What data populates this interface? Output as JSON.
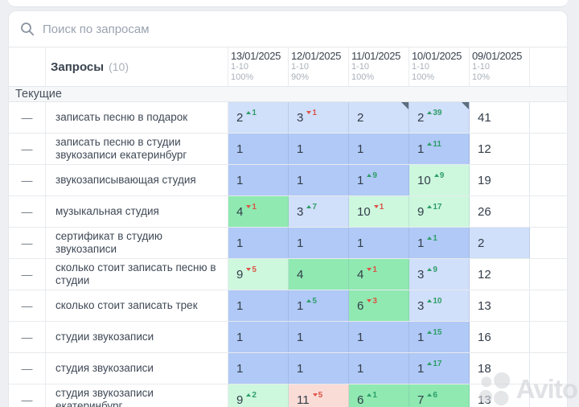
{
  "search": {
    "placeholder": "Поиск по запросам"
  },
  "table": {
    "queries_label": "Запросы",
    "queries_count": "(10)",
    "section_label": "Текущие",
    "columns": [
      {
        "date": "13/01/2025",
        "range": "1-10",
        "percent": "100%"
      },
      {
        "date": "12/01/2025",
        "range": "1-10",
        "percent": "90%"
      },
      {
        "date": "11/01/2025",
        "range": "1-10",
        "percent": "100%"
      },
      {
        "date": "10/01/2025",
        "range": "1-10",
        "percent": "100%"
      },
      {
        "date": "09/01/2025",
        "range": "1-10",
        "percent": "10%"
      }
    ],
    "rows": [
      {
        "query": "записать песню в подарок",
        "marker": "—",
        "cells": [
          {
            "value": "2",
            "change": "1",
            "dir": "up",
            "bg": "lightblue"
          },
          {
            "value": "3",
            "change": "1",
            "dir": "down",
            "bg": "lightblue"
          },
          {
            "value": "2",
            "bg": "lightblue",
            "corner": true
          },
          {
            "value": "2",
            "change": "39",
            "dir": "up",
            "bg": "lightblue",
            "corner": true
          },
          {
            "value": "41",
            "bg": "white"
          }
        ]
      },
      {
        "query": "записать песню в студии звукозаписи екатеринбург",
        "marker": "—",
        "cells": [
          {
            "value": "1",
            "bg": "blue"
          },
          {
            "value": "1",
            "bg": "blue"
          },
          {
            "value": "1",
            "bg": "blue"
          },
          {
            "value": "1",
            "change": "11",
            "dir": "up",
            "bg": "blue"
          },
          {
            "value": "12",
            "bg": "white"
          }
        ]
      },
      {
        "query": "звукозаписывающая студия",
        "marker": "—",
        "cells": [
          {
            "value": "1",
            "bg": "blue"
          },
          {
            "value": "1",
            "bg": "blue"
          },
          {
            "value": "1",
            "change": "9",
            "dir": "up",
            "bg": "blue"
          },
          {
            "value": "10",
            "change": "9",
            "dir": "up",
            "bg": "lightgreen"
          },
          {
            "value": "19",
            "bg": "white"
          }
        ]
      },
      {
        "query": "музыкальная студия",
        "marker": "—",
        "cells": [
          {
            "value": "4",
            "change": "1",
            "dir": "down",
            "bg": "green"
          },
          {
            "value": "3",
            "change": "7",
            "dir": "up",
            "bg": "lightblue"
          },
          {
            "value": "10",
            "change": "1",
            "dir": "down",
            "bg": "lightgreen"
          },
          {
            "value": "9",
            "change": "17",
            "dir": "up",
            "bg": "lightgreen"
          },
          {
            "value": "26",
            "bg": "white"
          }
        ]
      },
      {
        "query": "сертификат в студию звукозаписи",
        "marker": "—",
        "cells": [
          {
            "value": "1",
            "bg": "blue"
          },
          {
            "value": "1",
            "bg": "blue"
          },
          {
            "value": "1",
            "bg": "blue"
          },
          {
            "value": "1",
            "change": "1",
            "dir": "up",
            "bg": "blue"
          },
          {
            "value": "2",
            "bg": "lightblue"
          }
        ]
      },
      {
        "query": "сколько стоит записать песню в студии",
        "marker": "—",
        "cells": [
          {
            "value": "9",
            "change": "5",
            "dir": "down",
            "bg": "lightgreen"
          },
          {
            "value": "4",
            "bg": "green"
          },
          {
            "value": "4",
            "change": "1",
            "dir": "down",
            "bg": "green"
          },
          {
            "value": "3",
            "change": "9",
            "dir": "up",
            "bg": "lightblue"
          },
          {
            "value": "12",
            "bg": "white"
          }
        ]
      },
      {
        "query": "сколько стоит записать трек",
        "marker": "—",
        "cells": [
          {
            "value": "1",
            "bg": "blue"
          },
          {
            "value": "1",
            "change": "5",
            "dir": "up",
            "bg": "blue"
          },
          {
            "value": "6",
            "change": "3",
            "dir": "down",
            "bg": "green"
          },
          {
            "value": "3",
            "change": "10",
            "dir": "up",
            "bg": "lightblue"
          },
          {
            "value": "13",
            "bg": "white"
          }
        ]
      },
      {
        "query": "студии звукозаписи",
        "marker": "—",
        "cells": [
          {
            "value": "1",
            "bg": "blue"
          },
          {
            "value": "1",
            "bg": "blue"
          },
          {
            "value": "1",
            "bg": "blue"
          },
          {
            "value": "1",
            "change": "15",
            "dir": "up",
            "bg": "blue"
          },
          {
            "value": "16",
            "bg": "white"
          }
        ]
      },
      {
        "query": "студия звукозаписи",
        "marker": "—",
        "cells": [
          {
            "value": "1",
            "bg": "blue"
          },
          {
            "value": "1",
            "bg": "blue"
          },
          {
            "value": "1",
            "bg": "blue"
          },
          {
            "value": "1",
            "change": "17",
            "dir": "up",
            "bg": "blue"
          },
          {
            "value": "18",
            "bg": "white"
          }
        ]
      },
      {
        "query": "студия звукозаписи екатеринбург",
        "marker": "—",
        "cells": [
          {
            "value": "9",
            "change": "2",
            "dir": "up",
            "bg": "lightgreen"
          },
          {
            "value": "11",
            "change": "5",
            "dir": "down",
            "bg": "pink"
          },
          {
            "value": "6",
            "change": "1",
            "dir": "up",
            "bg": "green"
          },
          {
            "value": "7",
            "change": "6",
            "dir": "up",
            "bg": "green"
          },
          {
            "value": "13",
            "bg": "white"
          }
        ]
      }
    ]
  },
  "watermark": {
    "text": "Avito"
  },
  "colors": {
    "page": "#edeff3",
    "blue": "#b0c9f6",
    "lightblue": "#d0dffa",
    "green": "#8fe9b1",
    "lightgreen": "#cdf8de",
    "pink": "#fadcd7",
    "up": "#2e9e68",
    "down": "#dd5345",
    "corner": "#5d6e7e"
  }
}
